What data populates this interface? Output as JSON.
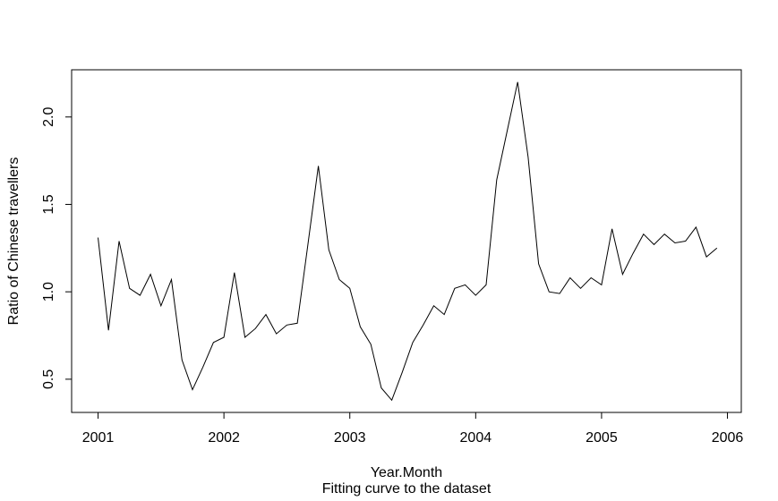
{
  "figure": {
    "background": "#ffffff",
    "foreground": "#000000"
  },
  "chart_data": {
    "type": "line",
    "title": "",
    "xlabel": "Year.Month",
    "subtitle": "Fitting curve to the dataset",
    "ylabel": "Ratio of Chinese travellers",
    "series_name": "Ratio of Chinese travellers",
    "line_color": "#000000",
    "line_width": 1,
    "grid": false,
    "legend": "none",
    "start_year": 2001,
    "frequency": 12,
    "x_unit": "decimal-year, monthly from Jan 2001 to Dec 2005",
    "values": [
      1.31,
      0.78,
      1.29,
      1.02,
      0.98,
      1.1,
      0.92,
      1.07,
      0.61,
      0.44,
      0.57,
      0.71,
      0.74,
      1.11,
      0.74,
      0.79,
      0.87,
      0.76,
      0.81,
      0.82,
      1.27,
      1.72,
      1.24,
      1.07,
      1.02,
      0.8,
      0.7,
      0.45,
      0.38,
      0.54,
      0.71,
      0.81,
      0.92,
      0.87,
      1.02,
      1.04,
      0.98,
      1.04,
      1.64,
      1.92,
      2.2,
      1.77,
      1.16,
      1.0,
      0.99,
      1.08,
      1.02,
      1.08,
      1.04,
      1.36,
      1.1,
      1.22,
      1.33,
      1.27,
      1.33,
      1.28,
      1.29,
      1.37,
      1.2,
      1.25
    ],
    "xlim": [
      2000.79,
      2006.11
    ],
    "ylim": [
      0.31,
      2.27
    ],
    "x_ticks": [
      2001,
      2002,
      2003,
      2004,
      2005,
      2006
    ],
    "x_tick_labels": [
      "2001",
      "2002",
      "2003",
      "2004",
      "2005",
      "2006"
    ],
    "y_ticks": [
      0.5,
      1.0,
      1.5,
      2.0
    ],
    "y_tick_labels": [
      "0.5",
      "1.0",
      "1.5",
      "2.0"
    ]
  }
}
